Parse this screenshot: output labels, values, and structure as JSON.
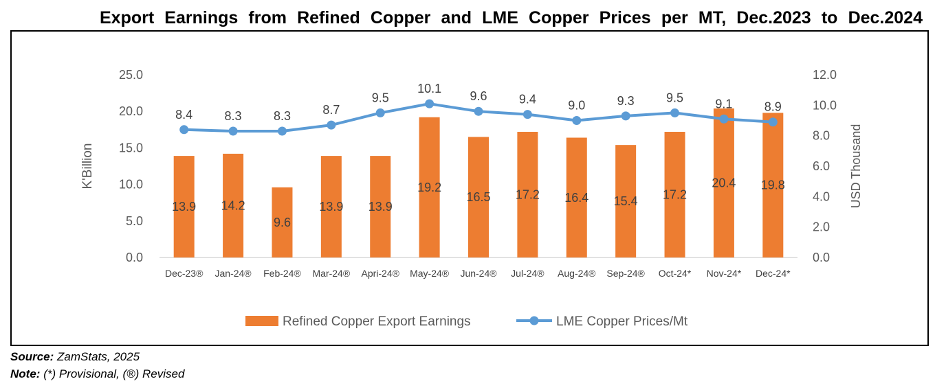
{
  "title": "Export Earnings from Refined Copper and LME Copper Prices per MT, Dec.2023 to Dec.2024",
  "source": {
    "label": "Source:",
    "text": "ZamStats, 2025"
  },
  "note": {
    "label": "Note:",
    "text": "(*) Provisional, (®) Revised"
  },
  "colors": {
    "bar": "#ED7D31",
    "line": "#5B9BD5",
    "axis_text": "#595959",
    "axis_line": "#D9D9D9"
  },
  "chart_data": {
    "type": "bar",
    "categories": [
      "Dec-23®",
      "Jan-24®",
      "Feb-24®",
      "Mar-24®",
      "Apri-24®",
      "May-24®",
      "Jun-24®",
      "Jul-24®",
      "Aug-24®",
      "Sep-24®",
      "Oct-24*",
      "Nov-24*",
      "Dec-24*"
    ],
    "series": [
      {
        "name": "Refined Copper Export Earnings",
        "type": "bar",
        "axis": "left",
        "values": [
          13.9,
          14.2,
          9.6,
          13.9,
          13.9,
          19.2,
          16.5,
          17.2,
          16.4,
          15.4,
          17.2,
          20.4,
          19.8
        ],
        "labels": [
          "13.9",
          "14.2",
          "9.6",
          "13.9",
          "13.9",
          "19.2",
          "16.5",
          "17.2",
          "16.4",
          "15.4",
          "17.2",
          "20.4",
          "19.8"
        ]
      },
      {
        "name": "LME Copper Prices/Mt",
        "type": "line",
        "axis": "right",
        "values": [
          8.4,
          8.3,
          8.3,
          8.7,
          9.5,
          10.1,
          9.6,
          9.4,
          9.0,
          9.3,
          9.5,
          9.1,
          8.9
        ],
        "labels": [
          "8.4",
          "8.3",
          "8.3",
          "8.7",
          "9.5",
          "10.1",
          "9.6",
          "9.4",
          "9.0",
          "9.3",
          "9.5",
          "9.1",
          "8.9"
        ]
      }
    ],
    "ylabel": "K'Billion",
    "y2label": "USD Thousand",
    "ylim": [
      0,
      25
    ],
    "y2lim": [
      0,
      12
    ],
    "yticks": [
      "0.0",
      "5.0",
      "10.0",
      "15.0",
      "20.0",
      "25.0"
    ],
    "y2ticks": [
      "0.0",
      "2.0",
      "4.0",
      "6.0",
      "8.0",
      "10.0",
      "12.0"
    ],
    "legend": "bottom",
    "grid": false
  }
}
